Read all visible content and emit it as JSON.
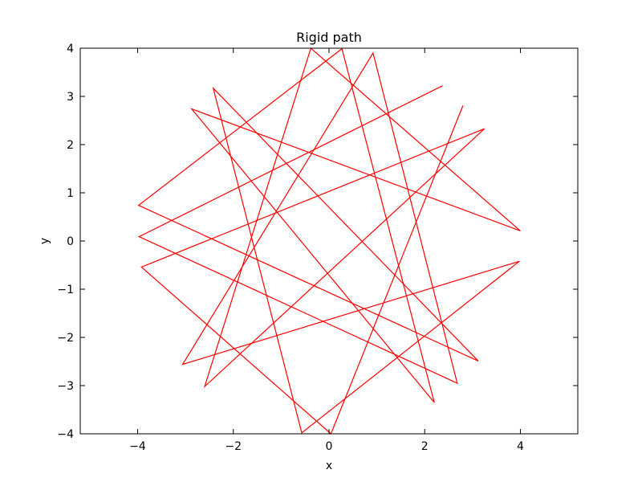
{
  "chart_data": {
    "type": "line",
    "title": "Rigid path",
    "xlabel": "x",
    "ylabel": "y",
    "xlim": [
      -5.2,
      5.2
    ],
    "ylim": [
      -4,
      4
    ],
    "xticks": [
      -4,
      -2,
      0,
      2,
      4
    ],
    "yticks": [
      -4,
      -3,
      -2,
      -1,
      0,
      1,
      2,
      3,
      4
    ],
    "xtick_labels": [
      "−4",
      "−2",
      "0",
      "2",
      "4"
    ],
    "ytick_labels": [
      "−4",
      "−3",
      "−2",
      "−1",
      "0",
      "1",
      "2",
      "3",
      "4"
    ],
    "grid": false,
    "series": [
      {
        "color": "#ff0000",
        "x": [
          2.37,
          -3.97,
          2.68,
          0.92,
          -3.06,
          3.98,
          -0.57,
          -2.42,
          3.12,
          -3.98,
          0.27,
          2.2,
          -2.87,
          4.0,
          -0.38,
          -2.6,
          3.25,
          -3.92,
          0.04,
          2.8
        ],
        "y": [
          3.22,
          0.09,
          -2.95,
          3.9,
          -2.56,
          -0.42,
          -3.98,
          3.17,
          -2.49,
          0.74,
          3.99,
          -3.35,
          2.74,
          0.21,
          4.0,
          -3.02,
          2.33,
          -0.54,
          -4.0,
          2.81
        ]
      }
    ]
  }
}
